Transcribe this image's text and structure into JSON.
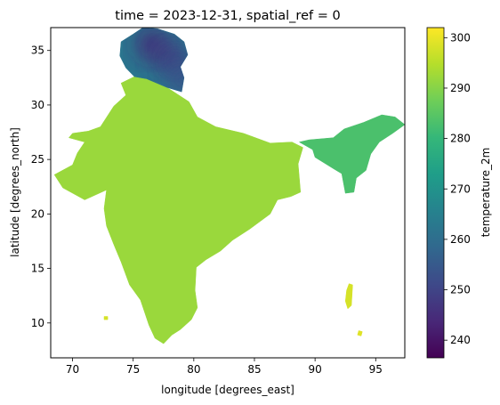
{
  "chart_data": {
    "type": "heatmap",
    "title": "time = 2023-12-31, spatial_ref = 0",
    "xlabel": "longitude [degrees_east]",
    "ylabel": "latitude [degrees_north]",
    "colorbar_label": "temperature_2m",
    "xlim": [
      68.2,
      97.4
    ],
    "ylim": [
      6.8,
      37.1
    ],
    "xticks": [
      70,
      75,
      80,
      85,
      90,
      95
    ],
    "yticks": [
      10,
      15,
      20,
      25,
      30,
      35
    ],
    "color_range": [
      236.5,
      302
    ],
    "colorbar_ticks": [
      240,
      250,
      260,
      270,
      280,
      290,
      300
    ],
    "colormap": [
      "#440154",
      "#482878",
      "#3e4989",
      "#31688e",
      "#26828e",
      "#1f9e89",
      "#35b779",
      "#6ece58",
      "#b5de2b",
      "#fde725"
    ],
    "grid": false,
    "regions": [
      {
        "name": "mainland",
        "approx_temperature": 292,
        "outline": [
          [
            72.6,
            20.5
          ],
          [
            72.8,
            22.2
          ],
          [
            71.0,
            21.3
          ],
          [
            69.2,
            22.4
          ],
          [
            68.5,
            23.6
          ],
          [
            70.0,
            24.5
          ],
          [
            70.4,
            25.6
          ],
          [
            71.0,
            26.6
          ],
          [
            69.7,
            27.0
          ],
          [
            70.0,
            27.4
          ],
          [
            71.3,
            27.6
          ],
          [
            72.3,
            28.0
          ],
          [
            73.4,
            29.9
          ],
          [
            74.4,
            30.9
          ],
          [
            74.0,
            32.0
          ],
          [
            75.1,
            32.6
          ],
          [
            76.1,
            32.4
          ],
          [
            77.8,
            31.6
          ],
          [
            79.6,
            30.3
          ],
          [
            80.3,
            28.9
          ],
          [
            81.8,
            28.0
          ],
          [
            84.1,
            27.4
          ],
          [
            86.3,
            26.5
          ],
          [
            88.1,
            26.6
          ],
          [
            89.0,
            26.1
          ],
          [
            88.6,
            24.6
          ],
          [
            88.8,
            22.0
          ],
          [
            88.0,
            21.6
          ],
          [
            86.9,
            21.3
          ],
          [
            86.3,
            20.0
          ],
          [
            84.6,
            18.6
          ],
          [
            83.2,
            17.6
          ],
          [
            82.2,
            16.6
          ],
          [
            81.0,
            15.8
          ],
          [
            80.2,
            15.1
          ],
          [
            80.1,
            13.0
          ],
          [
            80.3,
            11.4
          ],
          [
            79.8,
            10.3
          ],
          [
            78.9,
            9.4
          ],
          [
            78.2,
            8.9
          ],
          [
            77.5,
            8.1
          ],
          [
            76.8,
            8.6
          ],
          [
            76.3,
            9.8
          ],
          [
            75.6,
            12.1
          ],
          [
            74.7,
            13.5
          ],
          [
            74.0,
            15.6
          ],
          [
            73.4,
            17.2
          ],
          [
            72.8,
            18.9
          ]
        ]
      },
      {
        "name": "northern-highlands",
        "approx_temperature": 262,
        "outline": [
          [
            74.0,
            35.8
          ],
          [
            75.0,
            36.5
          ],
          [
            75.8,
            37.1
          ],
          [
            77.0,
            37.0
          ],
          [
            78.4,
            36.5
          ],
          [
            79.2,
            35.8
          ],
          [
            79.5,
            34.6
          ],
          [
            78.9,
            33.5
          ],
          [
            79.2,
            32.5
          ],
          [
            79.0,
            31.2
          ],
          [
            77.8,
            31.6
          ],
          [
            76.1,
            32.4
          ],
          [
            75.1,
            32.6
          ],
          [
            74.4,
            33.4
          ],
          [
            73.9,
            34.5
          ]
        ]
      },
      {
        "name": "north-east",
        "approx_temperature": 283,
        "outline": [
          [
            88.7,
            26.6
          ],
          [
            89.5,
            26.8
          ],
          [
            91.5,
            27.0
          ],
          [
            92.4,
            27.8
          ],
          [
            94.0,
            28.4
          ],
          [
            95.5,
            29.1
          ],
          [
            96.6,
            28.9
          ],
          [
            97.4,
            28.2
          ],
          [
            96.4,
            27.4
          ],
          [
            95.3,
            26.6
          ],
          [
            94.6,
            25.5
          ],
          [
            94.2,
            24.0
          ],
          [
            93.4,
            23.3
          ],
          [
            93.2,
            22.0
          ],
          [
            92.5,
            21.9
          ],
          [
            92.2,
            23.7
          ],
          [
            91.6,
            24.1
          ],
          [
            90.0,
            25.2
          ],
          [
            89.8,
            25.9
          ]
        ]
      },
      {
        "name": "andaman-islands",
        "approx_temperature": 298,
        "outline": [
          [
            92.8,
            13.6
          ],
          [
            93.1,
            13.5
          ],
          [
            93.0,
            11.6
          ],
          [
            92.7,
            11.3
          ],
          [
            92.5,
            12.0
          ],
          [
            92.6,
            13.0
          ]
        ]
      },
      {
        "name": "nicobar-islands",
        "approx_temperature": 299,
        "outline": [
          [
            93.6,
            9.3
          ],
          [
            93.9,
            9.2
          ],
          [
            93.8,
            8.8
          ],
          [
            93.5,
            8.9
          ]
        ]
      },
      {
        "name": "lakshadweep",
        "approx_temperature": 298,
        "outline": [
          [
            72.6,
            10.6
          ],
          [
            72.9,
            10.6
          ],
          [
            72.9,
            10.3
          ],
          [
            72.6,
            10.3
          ]
        ]
      }
    ],
    "cold_spots": [
      {
        "lon": 76.5,
        "lat": 35.6,
        "temperature": 243
      },
      {
        "lon": 77.5,
        "lat": 34.8,
        "temperature": 247
      },
      {
        "lon": 78.5,
        "lat": 34.0,
        "temperature": 249
      },
      {
        "lon": 79.0,
        "lat": 32.3,
        "temperature": 252
      }
    ]
  }
}
